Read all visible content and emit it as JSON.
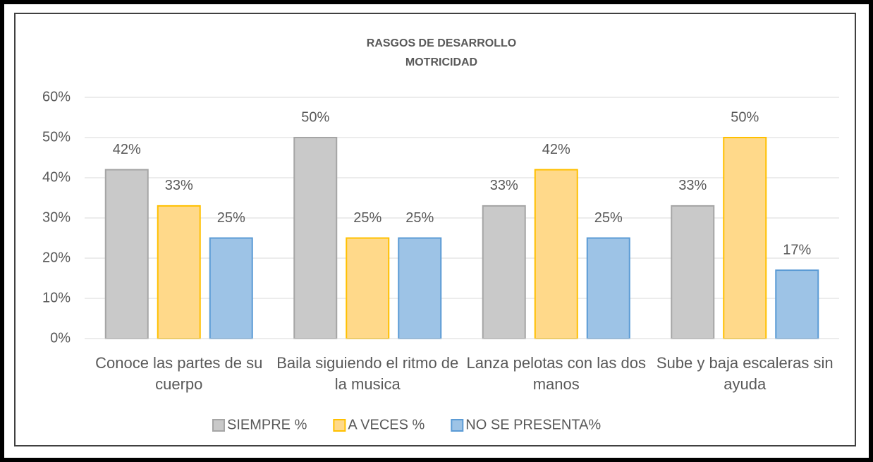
{
  "chart_data": {
    "type": "bar",
    "title": "RASGOS DE DESARROLLO",
    "subtitle": "MOTRICIDAD",
    "categories": [
      "Conoce las partes de su cuerpo",
      "Baila siguiendo el ritmo de la musica",
      "Lanza pelotas con las dos manos",
      "Sube y baja escaleras sin ayuda"
    ],
    "series": [
      {
        "name": "SIEMPRE %",
        "color": "#c9c9c9",
        "stroke": "#a5a5a5",
        "values": [
          42,
          50,
          33,
          33
        ],
        "value_labels": [
          "42%",
          "50%",
          "33%",
          "33%"
        ]
      },
      {
        "name": "A VECES %",
        "color": "#ffd98a",
        "stroke": "#ffc000",
        "values": [
          33,
          25,
          42,
          50
        ],
        "value_labels": [
          "33%",
          "25%",
          "42%",
          "50%"
        ]
      },
      {
        "name": "NO SE PRESENTA%",
        "color": "#9dc3e6",
        "stroke": "#5b9bd5",
        "values": [
          25,
          25,
          25,
          17
        ],
        "value_labels": [
          "25%",
          "25%",
          "25%",
          "17%"
        ]
      }
    ],
    "ylim": [
      0,
      60
    ],
    "yticks": [
      {
        "value": 0,
        "label": "0%"
      },
      {
        "value": 10,
        "label": "10%"
      },
      {
        "value": 20,
        "label": "20%"
      },
      {
        "value": 30,
        "label": "30%"
      },
      {
        "value": 40,
        "label": "40%"
      },
      {
        "value": 50,
        "label": "50%"
      },
      {
        "value": 60,
        "label": "60%"
      }
    ],
    "grid": true,
    "legend": "bottom"
  }
}
